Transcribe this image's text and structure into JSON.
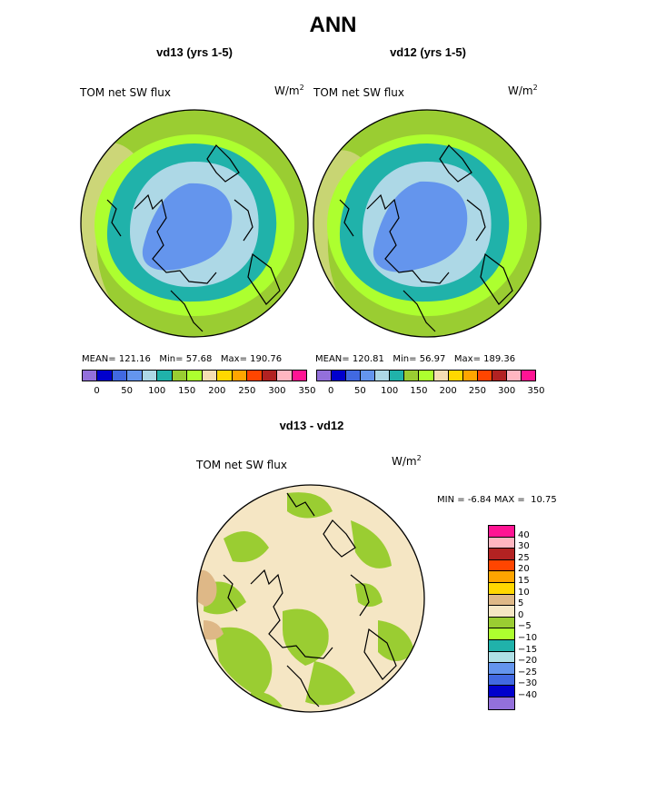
{
  "main_title": "ANN",
  "panels": [
    {
      "title": "vd13 (yrs 1-5)",
      "field": "TOM net SW flux",
      "units_base": "W/m",
      "units_exp": "2",
      "stats": {
        "mean_label": "MEAN=",
        "mean": "121.16",
        "min_label": "Min=",
        "min": "57.68",
        "max_label": "Max=",
        "max": "190.76"
      }
    },
    {
      "title": "vd12 (yrs 1-5)",
      "field": "TOM net SW flux",
      "units_base": "W/m",
      "units_exp": "2",
      "stats": {
        "mean_label": "MEAN=",
        "mean": "120.81",
        "min_label": "Min=",
        "min": "56.97",
        "max_label": "Max=",
        "max": "189.36"
      }
    }
  ],
  "abs_colorbar": {
    "colors": [
      "#9370db",
      "#0000cd",
      "#4169e1",
      "#6495ed",
      "#add8e6",
      "#20b2aa",
      "#9acd32",
      "#adff2f",
      "#f5deb3",
      "#ffd700",
      "#ffa500",
      "#ff4500",
      "#b22222",
      "#ffb6c1",
      "#ff1493"
    ],
    "tick_labels": [
      "0",
      "50",
      "100",
      "150",
      "200",
      "250",
      "300",
      "350"
    ]
  },
  "diff": {
    "title": "vd13 - vd12",
    "field": "TOM net SW flux",
    "units_base": "W/m",
    "units_exp": "2",
    "min_label": "MIN =",
    "min": "-6.84",
    "max_label": "MAX =",
    "max": "10.75",
    "colors": [
      "#ff1493",
      "#ffb6c1",
      "#b22222",
      "#ff4500",
      "#ffa500",
      "#ffd700",
      "#deb887",
      "#f5e6c4",
      "#9acd32",
      "#adff2f",
      "#20b2aa",
      "#b0e0e6",
      "#6495ed",
      "#4169e1",
      "#0000cd",
      "#9370db"
    ],
    "tick_labels": [
      "40",
      "30",
      "25",
      "20",
      "15",
      "10",
      "5",
      "0",
      "−5",
      "−10",
      "−15",
      "−20",
      "−25",
      "−30",
      "−40"
    ]
  },
  "chart_data": [
    {
      "type": "heatmap",
      "title": "vd13 (yrs 1-5)",
      "subtitle": "TOM net SW flux",
      "units": "W/m2",
      "projection": "polar stereographic (north)",
      "mean": 121.16,
      "min": 57.68,
      "max": 190.76,
      "levels": [
        0,
        25,
        50,
        75,
        100,
        125,
        150,
        175,
        200,
        225,
        250,
        275,
        300,
        325,
        350
      ]
    },
    {
      "type": "heatmap",
      "title": "vd12 (yrs 1-5)",
      "subtitle": "TOM net SW flux",
      "units": "W/m2",
      "projection": "polar stereographic (north)",
      "mean": 120.81,
      "min": 56.97,
      "max": 189.36,
      "levels": [
        0,
        25,
        50,
        75,
        100,
        125,
        150,
        175,
        200,
        225,
        250,
        275,
        300,
        325,
        350
      ]
    },
    {
      "type": "heatmap",
      "title": "vd13 - vd12",
      "subtitle": "TOM net SW flux",
      "units": "W/m2",
      "projection": "polar stereographic (north)",
      "min": -6.84,
      "max": 10.75,
      "levels": [
        -40,
        -30,
        -25,
        -20,
        -15,
        -10,
        -5,
        0,
        5,
        10,
        15,
        20,
        25,
        30,
        40
      ]
    }
  ]
}
